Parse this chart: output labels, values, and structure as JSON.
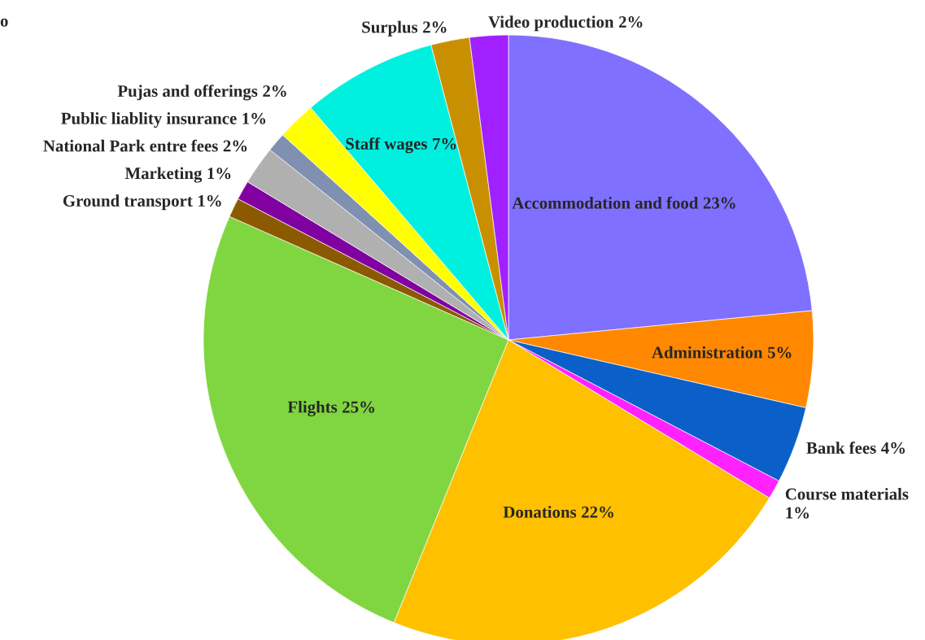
{
  "chart_data": {
    "type": "pie",
    "categories": [
      "Accommodation and food",
      "Administration",
      "Bank fees",
      "Course materials",
      "Donations",
      "Flights",
      "Ground transport",
      "Marketing",
      "National Park entre fees",
      "Public liablity insurance",
      "Pujas and offerings",
      "Staff wages",
      "Surplus",
      "Video production"
    ],
    "values": [
      23,
      5,
      4,
      1,
      22,
      25,
      1,
      1,
      2,
      1,
      2,
      7,
      2,
      2
    ],
    "colors": [
      "#8070ff",
      "#ff8800",
      "#0a60c8",
      "#ff22ff",
      "#ffc000",
      "#80d640",
      "#8b5a00",
      "#8000a0",
      "#b0b0b0",
      "#8090b0",
      "#ffff00",
      "#00f0e0",
      "#c89000",
      "#a020ff"
    ],
    "value_labels": [
      "23%",
      "5%",
      "4%",
      "1%",
      "22%",
      "25%",
      "1%",
      "1%",
      "2%",
      "1%",
      "2%",
      "7%",
      "2%",
      "2%"
    ],
    "annotations": [
      "o"
    ]
  }
}
